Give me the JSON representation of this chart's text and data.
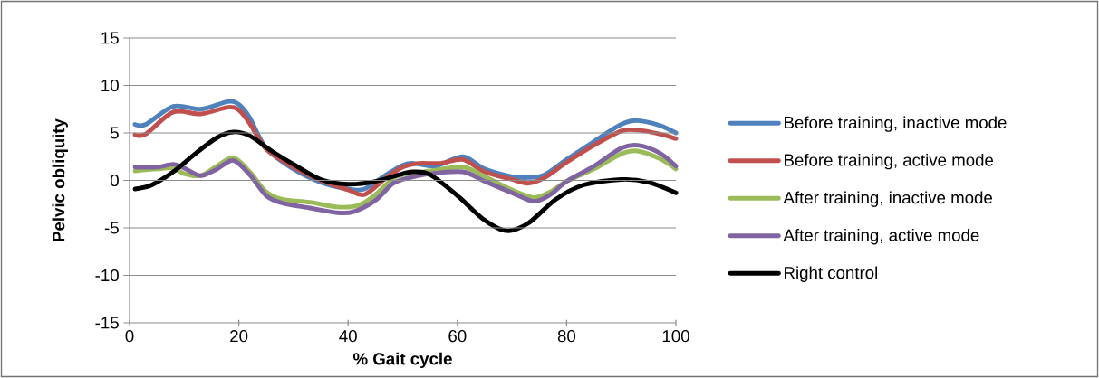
{
  "chart_data": {
    "type": "line",
    "xlabel": "% Gait cycle",
    "ylabel": "Pelvic obliquity",
    "xlim": [
      0,
      100
    ],
    "ylim": [
      -15,
      15
    ],
    "xticks": [
      0,
      20,
      40,
      60,
      80,
      100
    ],
    "yticks": [
      -15,
      -10,
      -5,
      0,
      5,
      10,
      15
    ],
    "grid": "y",
    "legend": "right",
    "series": [
      {
        "name": "Before training, inactive mode",
        "color": "#4f81bd",
        "x": [
          1,
          3,
          8,
          13,
          18,
          20,
          22,
          25,
          30,
          35,
          40,
          43,
          47,
          50,
          52,
          56,
          61,
          65,
          70,
          73,
          76,
          80,
          85,
          90,
          93,
          97,
          100
        ],
        "values": [
          5.9,
          5.9,
          7.8,
          7.5,
          8.3,
          8.0,
          6.6,
          3.4,
          1.2,
          -0.2,
          -0.9,
          -0.9,
          0.6,
          1.6,
          1.8,
          1.5,
          2.5,
          1.2,
          0.4,
          0.3,
          0.6,
          2.2,
          4.1,
          5.9,
          6.3,
          5.8,
          5.0
        ]
      },
      {
        "name": "Before training, active mode",
        "color": "#c0504d",
        "x": [
          1,
          3,
          8,
          13,
          18,
          20,
          22,
          25,
          30,
          35,
          40,
          43,
          47,
          50,
          53,
          57,
          61,
          65,
          70,
          73,
          76,
          80,
          85,
          90,
          93,
          97,
          100
        ],
        "values": [
          4.8,
          4.9,
          7.2,
          7.0,
          7.7,
          7.4,
          6.0,
          3.3,
          1.4,
          0.0,
          -1.0,
          -1.5,
          0.3,
          1.4,
          1.8,
          1.8,
          2.2,
          0.9,
          0.1,
          -0.3,
          0.3,
          1.9,
          3.7,
          5.2,
          5.3,
          4.9,
          4.4
        ]
      },
      {
        "name": "After training, inactive mode",
        "color": "#9bbb59",
        "x": [
          1,
          5,
          8,
          10,
          13,
          16,
          19,
          22,
          25,
          28,
          33,
          38,
          42,
          45,
          48,
          50,
          55,
          61,
          65,
          70,
          74,
          77,
          80,
          85,
          90,
          93,
          97,
          100
        ],
        "values": [
          1.0,
          1.2,
          1.3,
          0.7,
          0.5,
          1.5,
          2.4,
          0.9,
          -1.2,
          -2.0,
          -2.3,
          -2.8,
          -2.6,
          -1.5,
          0.1,
          0.6,
          1.0,
          1.4,
          0.4,
          -1.0,
          -1.8,
          -1.2,
          -0.1,
          1.2,
          2.8,
          3.1,
          2.3,
          1.2
        ]
      },
      {
        "name": "After training, active mode",
        "color": "#8064a2",
        "x": [
          1,
          5,
          8,
          10,
          13,
          16,
          19,
          22,
          25,
          28,
          33,
          38,
          41,
          45,
          48,
          50,
          55,
          61,
          65,
          70,
          74,
          77,
          80,
          85,
          90,
          93,
          97,
          100
        ],
        "values": [
          1.4,
          1.4,
          1.7,
          1.3,
          0.5,
          1.2,
          2.1,
          0.6,
          -1.6,
          -2.4,
          -2.9,
          -3.4,
          -3.3,
          -2.1,
          -0.4,
          0.1,
          0.7,
          0.9,
          -0.1,
          -1.3,
          -2.2,
          -1.5,
          -0.1,
          1.5,
          3.4,
          3.7,
          2.9,
          1.5
        ]
      },
      {
        "name": "Right control",
        "color": "#000000",
        "x": [
          1,
          4,
          8,
          12,
          16,
          19,
          22,
          26,
          30,
          35,
          40,
          45,
          50,
          52,
          55,
          60,
          65,
          69,
          73,
          78,
          83,
          90,
          95,
          100
        ],
        "values": [
          -0.9,
          -0.5,
          0.9,
          2.8,
          4.5,
          5.1,
          4.7,
          3.1,
          1.7,
          0.1,
          -0.4,
          -0.1,
          0.7,
          0.9,
          0.6,
          -1.6,
          -4.2,
          -5.3,
          -4.5,
          -2.0,
          -0.5,
          0.1,
          -0.2,
          -1.3
        ]
      }
    ]
  }
}
